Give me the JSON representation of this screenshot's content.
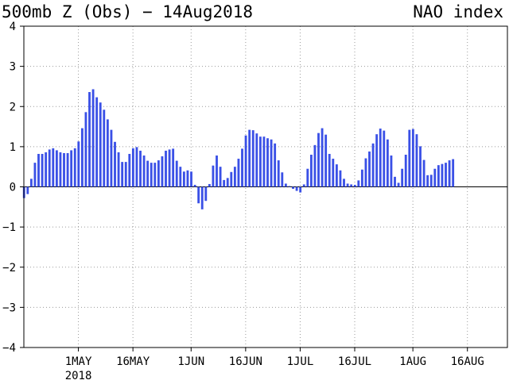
{
  "chart_data": {
    "type": "bar",
    "title_left": "500mb Z (Obs) − 14Aug2018",
    "title_right": "NAO index",
    "xlabel": "",
    "ylabel": "",
    "ylim": [
      -4,
      4
    ],
    "yticks": [
      4,
      3,
      2,
      1,
      0,
      -1,
      -2,
      -3,
      -4
    ],
    "ytick_labels": [
      "4",
      "3",
      "2",
      "1",
      "0",
      "−1",
      "−2",
      "−3",
      "−4"
    ],
    "xlim": [
      "2018-04-16",
      "2018-08-27"
    ],
    "xticks": [
      {
        "date": "2018-05-01",
        "label": "1MAY",
        "sublabel": "2018"
      },
      {
        "date": "2018-05-16",
        "label": "16MAY",
        "sublabel": ""
      },
      {
        "date": "2018-06-01",
        "label": "1JUN",
        "sublabel": ""
      },
      {
        "date": "2018-06-16",
        "label": "16JUN",
        "sublabel": ""
      },
      {
        "date": "2018-07-01",
        "label": "1JUL",
        "sublabel": ""
      },
      {
        "date": "2018-07-16",
        "label": "16JUL",
        "sublabel": ""
      },
      {
        "date": "2018-08-01",
        "label": "1AUG",
        "sublabel": ""
      },
      {
        "date": "2018-08-16",
        "label": "16AUG",
        "sublabel": ""
      }
    ],
    "x_start_date": "2018-04-16",
    "values": [
      -0.28,
      -0.18,
      0.2,
      0.6,
      0.82,
      0.82,
      0.86,
      0.93,
      0.96,
      0.91,
      0.86,
      0.84,
      0.84,
      0.91,
      0.96,
      1.13,
      1.46,
      1.86,
      2.36,
      2.43,
      2.23,
      2.1,
      1.92,
      1.68,
      1.42,
      1.12,
      0.86,
      0.62,
      0.62,
      0.82,
      0.96,
      0.99,
      0.9,
      0.78,
      0.65,
      0.6,
      0.6,
      0.66,
      0.76,
      0.9,
      0.93,
      0.95,
      0.65,
      0.5,
      0.38,
      0.41,
      0.38,
      0.05,
      -0.41,
      -0.56,
      -0.35,
      0.07,
      0.53,
      0.78,
      0.5,
      0.17,
      0.22,
      0.37,
      0.5,
      0.7,
      0.95,
      1.28,
      1.42,
      1.41,
      1.33,
      1.25,
      1.25,
      1.21,
      1.18,
      1.08,
      0.66,
      0.36,
      0.08,
      0.02,
      -0.05,
      -0.1,
      -0.14,
      0.06,
      0.45,
      0.8,
      1.04,
      1.34,
      1.46,
      1.3,
      0.82,
      0.7,
      0.56,
      0.41,
      0.2,
      0.08,
      0.06,
      0.05,
      0.16,
      0.43,
      0.71,
      0.88,
      1.08,
      1.31,
      1.45,
      1.4,
      1.18,
      0.78,
      0.25,
      0.1,
      0.45,
      0.8,
      1.42,
      1.44,
      1.31,
      1.01,
      0.67,
      0.29,
      0.3,
      0.45,
      0.54,
      0.57,
      0.6,
      0.66,
      0.69
    ],
    "bar_color": "#3a50e6",
    "zero_line_color": "#000000",
    "grid": true,
    "grid_style": "dotted",
    "legend": "none"
  }
}
